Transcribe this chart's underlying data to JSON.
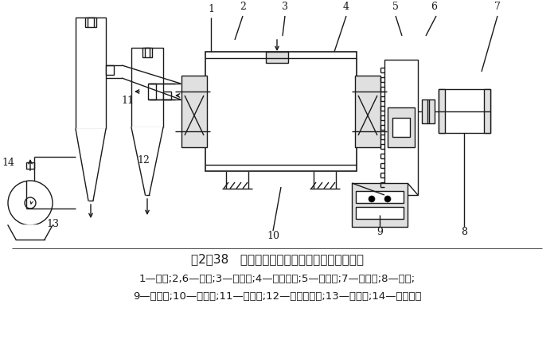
{
  "title_line1": "图2－38   普通卧式球磨机全系统组合设计原理图",
  "caption_line2": "1—基座;2,6—轴承;3—进料口;4—球磨简体;5—大齿轮;7—连轴器;8—电机;",
  "caption_line3": "9—减速机;10—小齿轮;11—出料口;12—旋风分离器;13—引风机;14—排气口。",
  "bg_color": "#ffffff",
  "line_color": "#1a1a1a",
  "title_fontsize": 11,
  "caption_fontsize": 9.5,
  "fig_width": 6.96,
  "fig_height": 4.41,
  "dpi": 100
}
